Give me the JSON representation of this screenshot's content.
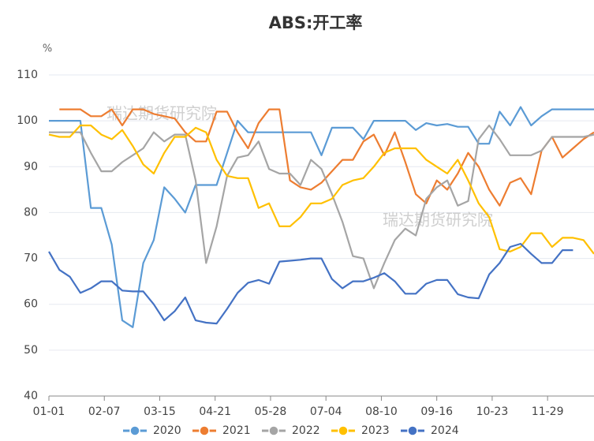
{
  "chart_data": {
    "type": "line",
    "title": "ABS:开工率",
    "y_unit": "%",
    "watermarks": [
      "瑞达期货研究院",
      "瑞达期货研究院"
    ],
    "x": [
      0,
      7,
      14,
      21,
      28,
      35,
      42,
      49,
      56,
      63,
      70,
      77,
      84,
      91,
      98,
      105,
      112,
      119,
      126,
      133,
      140,
      147,
      154,
      161,
      168,
      175,
      182,
      189,
      196,
      203,
      210,
      217,
      224,
      231,
      238,
      245,
      252,
      259,
      266,
      273,
      280,
      287,
      294,
      301,
      308,
      315,
      322,
      329,
      336,
      343,
      350,
      357,
      364
    ],
    "xlim": [
      0,
      364
    ],
    "xticks": [
      {
        "value": 0,
        "label": "01-01"
      },
      {
        "value": 37,
        "label": "02-07"
      },
      {
        "value": 74,
        "label": "03-15"
      },
      {
        "value": 111,
        "label": "04-21"
      },
      {
        "value": 148,
        "label": "05-28"
      },
      {
        "value": 185,
        "label": "07-04"
      },
      {
        "value": 222,
        "label": "08-10"
      },
      {
        "value": 259,
        "label": "09-16"
      },
      {
        "value": 296,
        "label": "10-23"
      },
      {
        "value": 333,
        "label": "11-29"
      }
    ],
    "ylim": [
      40,
      110
    ],
    "yticks": [
      40,
      50,
      60,
      70,
      80,
      90,
      100,
      110
    ],
    "grid": true,
    "series": [
      {
        "name": "2020",
        "color": "#5b9bd5",
        "values": [
          100,
          100,
          100,
          100,
          81,
          81,
          73,
          56.5,
          55,
          69,
          74,
          85.5,
          83,
          80,
          86,
          86,
          86,
          93,
          100,
          97.5,
          97.5,
          97.5,
          97.5,
          97.5,
          97.5,
          97.5,
          92.5,
          98.5,
          98.5,
          98.5,
          96,
          100,
          100,
          100,
          100,
          98,
          99.5,
          99,
          99.3,
          98.7,
          98.7,
          95,
          95,
          102,
          99,
          103,
          99,
          101,
          102.5,
          102.5,
          102.5,
          102.5,
          102.5
        ]
      },
      {
        "name": "2021",
        "color": "#ed7d31",
        "values": [
          null,
          102.5,
          102.5,
          102.5,
          101,
          101,
          102.5,
          99,
          102.5,
          102.5,
          101.5,
          101,
          100.5,
          97.5,
          95.5,
          95.5,
          102,
          102,
          97.5,
          94,
          99.5,
          102.5,
          102.5,
          87,
          85.5,
          85,
          86.5,
          89,
          91.5,
          91.5,
          95.5,
          97,
          92.5,
          97.5,
          91,
          84,
          82,
          87,
          85,
          88.5,
          93,
          90,
          85,
          81.5,
          86.5,
          87.5,
          84,
          93.5,
          96.5,
          92,
          94,
          96,
          97.5
        ]
      },
      {
        "name": "2022",
        "color": "#a5a5a5",
        "values": [
          97.5,
          97.5,
          97.5,
          97.5,
          93,
          89,
          89,
          91,
          92.5,
          94,
          97.5,
          95.5,
          97,
          97,
          87,
          69,
          77,
          88,
          92,
          92.5,
          95.5,
          89.5,
          88.5,
          88.5,
          86,
          91.5,
          89.5,
          84,
          78,
          70.5,
          70,
          63.5,
          69,
          74,
          76.5,
          75,
          83,
          85.5,
          87,
          81.5,
          82.5,
          96,
          99,
          96,
          92.5,
          92.5,
          92.5,
          93.5,
          96.5,
          96.5,
          96.5,
          96.5,
          97
        ]
      },
      {
        "name": "2023",
        "color": "#ffc000",
        "values": [
          97,
          96.5,
          96.5,
          99,
          99,
          97,
          96,
          98,
          94.5,
          90.5,
          88.5,
          93,
          96.5,
          96.5,
          98.5,
          97.5,
          91.5,
          88,
          87.5,
          87.5,
          81,
          82,
          77,
          77,
          79,
          82,
          82,
          83,
          86,
          87,
          87.5,
          90,
          93,
          94,
          94,
          94,
          91.5,
          90,
          88.5,
          91.5,
          87,
          82,
          79,
          72,
          71.5,
          72.5,
          75.5,
          75.5,
          72.5,
          74.5,
          74.5,
          74,
          71
        ]
      },
      {
        "name": "2024",
        "color": "#4472c4",
        "values": [
          71.5,
          67.5,
          66,
          62.5,
          63.5,
          65,
          65,
          63,
          62.8,
          62.8,
          60,
          56.5,
          58.5,
          61.5,
          56.5,
          56,
          55.8,
          59,
          62.5,
          64.7,
          65.3,
          64.5,
          69.3,
          69.5,
          69.7,
          70,
          70,
          65.5,
          63.5,
          65,
          65,
          65.8,
          66.8,
          65,
          62.3,
          62.3,
          64.5,
          65.3,
          65.3,
          62.2,
          61.5,
          61.3,
          66.5,
          69,
          72.5,
          73.2,
          71,
          69,
          69,
          71.8,
          71.8,
          null,
          null
        ]
      }
    ]
  }
}
